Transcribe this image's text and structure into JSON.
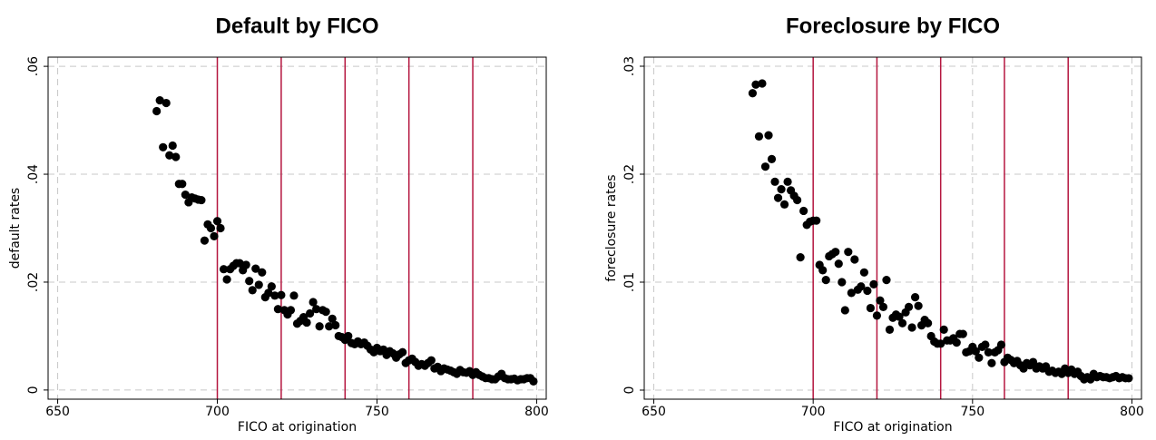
{
  "chart_data": [
    {
      "type": "scatter",
      "title": "Default by FICO",
      "x_label": "FICO at origination",
      "y_label": "default rates",
      "xlim": [
        647,
        803
      ],
      "ylim": [
        -0.0017,
        0.0617
      ],
      "xticks": [
        650,
        700,
        750,
        800
      ],
      "yticks": [
        0,
        {
          "value": 0.02,
          "label": ".02"
        },
        {
          "value": 0.04,
          "label": ".04"
        },
        {
          "value": 0.06,
          "label": ".06"
        }
      ],
      "grid": true,
      "color": "#000000",
      "vlines": [
        700,
        720,
        740,
        760,
        780
      ],
      "vline_color": "#b5163f",
      "x": [
        681,
        682,
        683,
        684,
        685,
        686,
        687,
        688,
        689,
        690,
        691,
        692,
        693,
        694,
        695,
        696,
        697,
        698,
        699,
        700,
        701,
        702,
        703,
        704,
        705,
        706,
        707,
        708,
        709,
        710,
        711,
        712,
        713,
        714,
        715,
        716,
        717,
        718,
        719,
        720,
        721,
        722,
        723,
        724,
        725,
        726,
        727,
        728,
        729,
        730,
        731,
        732,
        733,
        734,
        735,
        736,
        737,
        738,
        739,
        740,
        741,
        742,
        743,
        744,
        745,
        746,
        747,
        748,
        749,
        750,
        751,
        752,
        753,
        754,
        755,
        756,
        757,
        758,
        759,
        760,
        761,
        762,
        763,
        764,
        765,
        766,
        767,
        768,
        769,
        770,
        771,
        772,
        773,
        774,
        775,
        776,
        777,
        778,
        779,
        780,
        781,
        782,
        783,
        784,
        785,
        786,
        787,
        788,
        789,
        790,
        791,
        792,
        793,
        794,
        795,
        796,
        797,
        798,
        799
      ],
      "values": [
        0.0517,
        0.0537,
        0.045,
        0.0532,
        0.0435,
        0.0453,
        0.0432,
        0.0382,
        0.0382,
        0.0362,
        0.0348,
        0.0357,
        0.0355,
        0.0353,
        0.0352,
        0.0277,
        0.0307,
        0.03,
        0.0285,
        0.0313,
        0.03,
        0.0224,
        0.0205,
        0.0224,
        0.023,
        0.0235,
        0.0235,
        0.0222,
        0.0232,
        0.0202,
        0.0185,
        0.0225,
        0.0195,
        0.0218,
        0.0172,
        0.018,
        0.0192,
        0.0175,
        0.015,
        0.0176,
        0.0148,
        0.014,
        0.0148,
        0.0175,
        0.0123,
        0.0128,
        0.0135,
        0.0125,
        0.0142,
        0.0163,
        0.015,
        0.0118,
        0.0148,
        0.0145,
        0.0118,
        0.0132,
        0.012,
        0.01,
        0.0098,
        0.0093,
        0.01,
        0.0087,
        0.0085,
        0.009,
        0.0085,
        0.0088,
        0.0082,
        0.0075,
        0.007,
        0.0078,
        0.0072,
        0.0075,
        0.0065,
        0.0072,
        0.0068,
        0.006,
        0.0066,
        0.007,
        0.005,
        0.0055,
        0.0058,
        0.0052,
        0.0045,
        0.0048,
        0.0045,
        0.005,
        0.0055,
        0.004,
        0.0043,
        0.0035,
        0.004,
        0.0038,
        0.0036,
        0.0033,
        0.003,
        0.0037,
        0.0033,
        0.0032,
        0.0035,
        0.0028,
        0.0033,
        0.0028,
        0.0025,
        0.0022,
        0.0022,
        0.002,
        0.002,
        0.0025,
        0.003,
        0.0022,
        0.002,
        0.002,
        0.0021,
        0.0018,
        0.002,
        0.002,
        0.0022,
        0.0022,
        0.0016
      ]
    },
    {
      "type": "scatter",
      "title": "Foreclosure by FICO",
      "x_label": "FICO at origination",
      "y_label": "foreclosure rates",
      "xlim": [
        647,
        803
      ],
      "ylim": [
        -0.00084,
        0.03084
      ],
      "xticks": [
        650,
        700,
        750,
        800
      ],
      "yticks": [
        0,
        {
          "value": 0.01,
          "label": ".01"
        },
        {
          "value": 0.02,
          "label": ".02"
        },
        {
          "value": 0.03,
          "label": ".03"
        }
      ],
      "grid": true,
      "color": "#000000",
      "vlines": [
        700,
        720,
        740,
        760,
        780
      ],
      "vline_color": "#b5163f",
      "x": [
        681,
        682,
        683,
        684,
        685,
        686,
        687,
        688,
        689,
        690,
        691,
        692,
        693,
        694,
        695,
        696,
        697,
        698,
        699,
        700,
        701,
        702,
        703,
        704,
        705,
        706,
        707,
        708,
        709,
        710,
        711,
        712,
        713,
        714,
        715,
        716,
        717,
        718,
        719,
        720,
        721,
        722,
        723,
        724,
        725,
        726,
        727,
        728,
        729,
        730,
        731,
        732,
        733,
        734,
        735,
        736,
        737,
        738,
        739,
        740,
        741,
        742,
        743,
        744,
        745,
        746,
        747,
        748,
        749,
        750,
        751,
        752,
        753,
        754,
        755,
        756,
        757,
        758,
        759,
        760,
        761,
        762,
        763,
        764,
        765,
        766,
        767,
        768,
        769,
        770,
        771,
        772,
        773,
        774,
        775,
        776,
        777,
        778,
        779,
        780,
        781,
        782,
        783,
        784,
        785,
        786,
        787,
        788,
        789,
        790,
        791,
        792,
        793,
        794,
        795,
        796,
        797,
        798,
        799
      ],
      "values": [
        0.0275,
        0.0283,
        0.0235,
        0.0284,
        0.0207,
        0.0236,
        0.0214,
        0.0193,
        0.0178,
        0.0186,
        0.0172,
        0.0193,
        0.0185,
        0.018,
        0.0176,
        0.0123,
        0.0166,
        0.0153,
        0.0156,
        0.0157,
        0.0157,
        0.0116,
        0.0111,
        0.0102,
        0.0124,
        0.0126,
        0.0128,
        0.0117,
        0.01,
        0.0074,
        0.0128,
        0.009,
        0.0121,
        0.0093,
        0.0096,
        0.0109,
        0.0092,
        0.0076,
        0.0098,
        0.0069,
        0.0083,
        0.0077,
        0.0102,
        0.0056,
        0.0067,
        0.007,
        0.0068,
        0.0062,
        0.0072,
        0.0077,
        0.0058,
        0.0086,
        0.0078,
        0.006,
        0.0065,
        0.0062,
        0.005,
        0.0045,
        0.0043,
        0.0043,
        0.0056,
        0.0046,
        0.0046,
        0.0048,
        0.0044,
        0.0052,
        0.0052,
        0.0035,
        0.0036,
        0.004,
        0.0036,
        0.003,
        0.004,
        0.0042,
        0.0035,
        0.0025,
        0.0035,
        0.0037,
        0.0042,
        0.0026,
        0.003,
        0.0028,
        0.0025,
        0.0027,
        0.0023,
        0.002,
        0.0025,
        0.0023,
        0.0026,
        0.002,
        0.0022,
        0.002,
        0.0022,
        0.0017,
        0.0018,
        0.0016,
        0.0017,
        0.0015,
        0.002,
        0.0016,
        0.0019,
        0.0015,
        0.0017,
        0.0013,
        0.001,
        0.0012,
        0.001,
        0.0015,
        0.0012,
        0.0013,
        0.0012,
        0.0012,
        0.0011,
        0.0012,
        0.0013,
        0.0011,
        0.0012,
        0.0011,
        0.0011
      ]
    }
  ]
}
